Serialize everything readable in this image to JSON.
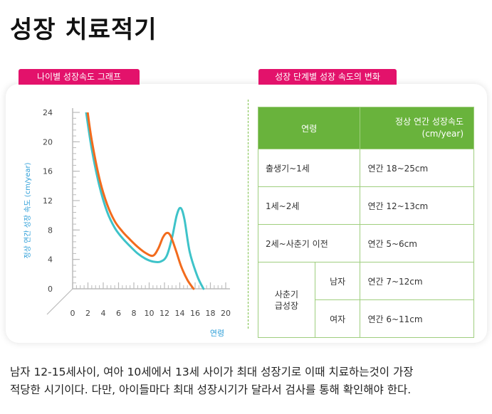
{
  "title": "성장 치료적기",
  "left_tag": "나이별 성장속도 그래프",
  "right_tag": "성장 단계별 성장 속도의 변화",
  "chart_data": {
    "type": "line",
    "title": "나이별 성장속도 그래프",
    "ylabel": "정상 연간 성장 속도 (cm/year)",
    "xlabel": "연령",
    "xlim": [
      0,
      20
    ],
    "ylim": [
      0,
      24
    ],
    "xticks": [
      "0",
      "2",
      "4",
      "6",
      "8",
      "10",
      "12",
      "14",
      "16",
      "18",
      "20"
    ],
    "yticks": [
      "0",
      "4",
      "8",
      "12",
      "16",
      "20",
      "24"
    ],
    "colors": {
      "orange": "#f26b1d",
      "teal": "#3ec3c9",
      "axis": "#bbbbbb",
      "ylabel": "#2f9fd8"
    },
    "series": [
      {
        "name": "orange",
        "x": [
          1.9,
          2.5,
          3.5,
          4.5,
          5.5,
          6.5,
          7.5,
          8.5,
          9.5,
          10.5,
          11.2,
          11.8,
          12.3,
          12.8,
          13.5,
          14.2,
          15.0,
          15.8
        ],
        "y": [
          24.5,
          20.2,
          15.0,
          11.5,
          9.2,
          7.8,
          6.7,
          5.7,
          4.9,
          4.5,
          5.5,
          7.0,
          7.6,
          7.2,
          5.2,
          3.0,
          1.2,
          0
        ]
      },
      {
        "name": "teal",
        "x": [
          1.7,
          2.5,
          3.5,
          4.5,
          5.5,
          6.5,
          7.5,
          8.5,
          9.5,
          10.5,
          11.5,
          12.3,
          13.0,
          13.6,
          14.1,
          14.6,
          15.3,
          16.3,
          17.1
        ],
        "y": [
          24.5,
          19.0,
          14.0,
          10.5,
          8.3,
          6.9,
          5.8,
          4.8,
          4.1,
          3.7,
          3.7,
          4.5,
          7.0,
          10.0,
          11.0,
          9.5,
          5.0,
          1.7,
          0
        ]
      }
    ]
  },
  "table": {
    "header_age": "연령",
    "header_rate": "정상 연간 성장속도",
    "header_unit": "(cm/year)",
    "rows": [
      {
        "stage": "출생기~1세",
        "value": "연간 18~25cm"
      },
      {
        "stage": "1세~2세",
        "value": "연간 12~13cm"
      },
      {
        "stage": "2세~사춘기 이전",
        "value": "연간 5~6cm"
      }
    ],
    "puberty_l1": "사춘기",
    "puberty_l2": "급성장",
    "male_label": "남자",
    "male_value": "연간 7~12cm",
    "female_label": "여자",
    "female_value": "연간 6~11cm"
  },
  "note_line1": "남자 12-15세사이, 여아 10세에서 13세 사이가 최대 성장기로 이때 치료하는것이 가장",
  "note_line2": "적당한 시기이다. 다만, 아이들마다 최대 성장시기가 달라서 검사를 통해 확인해야 한다."
}
